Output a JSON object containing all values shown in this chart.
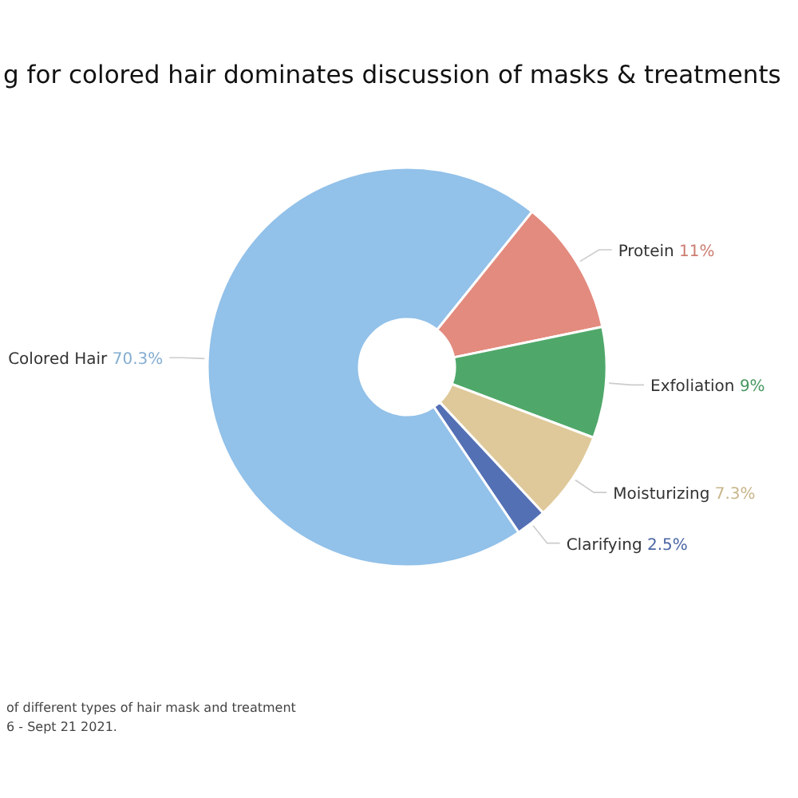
{
  "chart_data": {
    "type": "donut",
    "title": "g for colored hair dominates discussion of masks & treatments",
    "categories": [
      "Protein",
      "Exfoliation",
      "Moisturizing",
      "Clarifying",
      "Colored Hair"
    ],
    "values": [
      11,
      9,
      7.3,
      2.5,
      70.3
    ],
    "colors": [
      "#e38b7e",
      "#4fa86a",
      "#dfc99a",
      "#5470b5",
      "#92c1e9"
    ],
    "value_labels": [
      "11%",
      "9%",
      "7.3%",
      "2.5%",
      "70.3%"
    ],
    "annotations": [
      "of different types of hair mask and treatment",
      "6 - Sept 21 2021."
    ]
  }
}
